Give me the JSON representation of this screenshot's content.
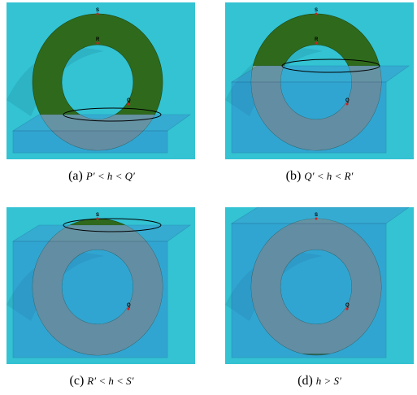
{
  "panels": [
    {
      "label": "(a)",
      "caption": "P′ < h < Q′",
      "points": [
        "S",
        "R",
        "Q"
      ]
    },
    {
      "label": "(b)",
      "caption": "Q′ < h < R′",
      "points": [
        "S",
        "R",
        "Q"
      ]
    },
    {
      "label": "(c)",
      "caption": "R′ < h < S′",
      "points": [
        "S",
        "Q"
      ]
    },
    {
      "label": "(d)",
      "caption": "h > S′",
      "points": [
        "S",
        "Q"
      ]
    }
  ]
}
